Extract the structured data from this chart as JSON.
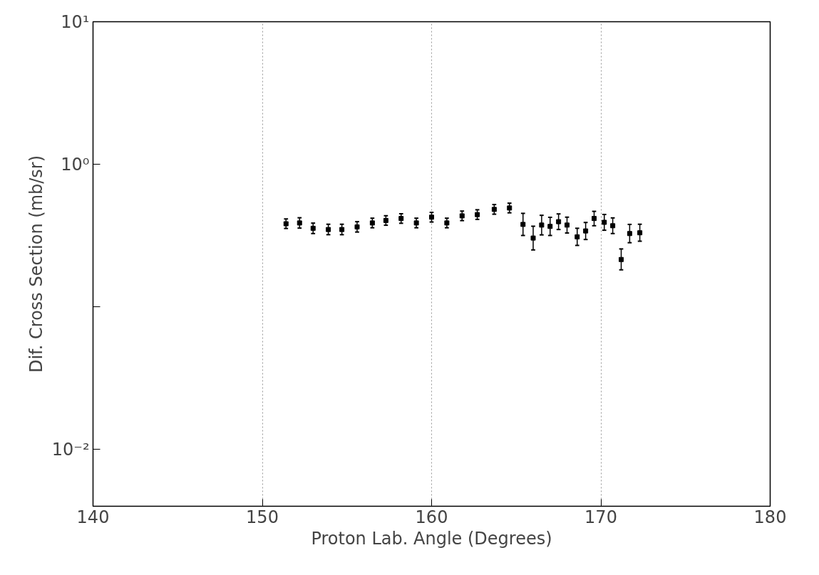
{
  "chart_data": {
    "type": "scatter",
    "xlabel": "Proton Lab. Angle (Degrees)",
    "ylabel": "Dif. Cross Section (mb/sr)",
    "log": "y",
    "grid": "x",
    "marker": "square",
    "xlim": [
      140,
      180
    ],
    "xticks": [
      140,
      150,
      160,
      170,
      180
    ],
    "ylim": [
      0.004,
      10
    ],
    "yticks": [
      {
        "value": 10,
        "label": "10¹"
      },
      {
        "value": 1,
        "label": "10⁰"
      },
      {
        "value": 0.1,
        "label": null
      },
      {
        "value": 0.01,
        "label": "10⁻²"
      }
    ],
    "series": [
      {
        "color": "#000000",
        "x": [
          151.4,
          152.2,
          153.0,
          153.9,
          154.7,
          155.6,
          156.5,
          157.3,
          158.2,
          159.1,
          160.0,
          160.9,
          161.8,
          162.7,
          163.7,
          164.6,
          165.4,
          166.0,
          166.5,
          167.0,
          167.5,
          168.0,
          168.6,
          169.1,
          169.6,
          170.2,
          170.7,
          171.2,
          171.7,
          172.3
        ],
        "values": [
          0.383,
          0.388,
          0.356,
          0.349,
          0.349,
          0.364,
          0.388,
          0.404,
          0.417,
          0.388,
          0.426,
          0.388,
          0.435,
          0.444,
          0.483,
          0.494,
          0.379,
          0.304,
          0.375,
          0.367,
          0.396,
          0.375,
          0.31,
          0.341,
          0.417,
          0.392,
          0.371,
          0.215,
          0.327,
          0.331
        ],
        "errors": [
          [
            0.355,
            0.414
          ],
          [
            0.357,
            0.422
          ],
          [
            0.327,
            0.387
          ],
          [
            0.321,
            0.38
          ],
          [
            0.321,
            0.38
          ],
          [
            0.335,
            0.396
          ],
          [
            0.359,
            0.419
          ],
          [
            0.374,
            0.436
          ],
          [
            0.386,
            0.45
          ],
          [
            0.359,
            0.419
          ],
          [
            0.394,
            0.46
          ],
          [
            0.359,
            0.419
          ],
          [
            0.403,
            0.47
          ],
          [
            0.411,
            0.48
          ],
          [
            0.447,
            0.522
          ],
          [
            0.457,
            0.534
          ],
          [
            0.317,
            0.453
          ],
          [
            0.251,
            0.368
          ],
          [
            0.32,
            0.439
          ],
          [
            0.317,
            0.425
          ],
          [
            0.349,
            0.449
          ],
          [
            0.33,
            0.426
          ],
          [
            0.27,
            0.356
          ],
          [
            0.297,
            0.391
          ],
          [
            0.371,
            0.468
          ],
          [
            0.345,
            0.445
          ],
          [
            0.327,
            0.421
          ],
          [
            0.182,
            0.255
          ],
          [
            0.282,
            0.379
          ],
          [
            0.289,
            0.38
          ]
        ]
      }
    ]
  }
}
